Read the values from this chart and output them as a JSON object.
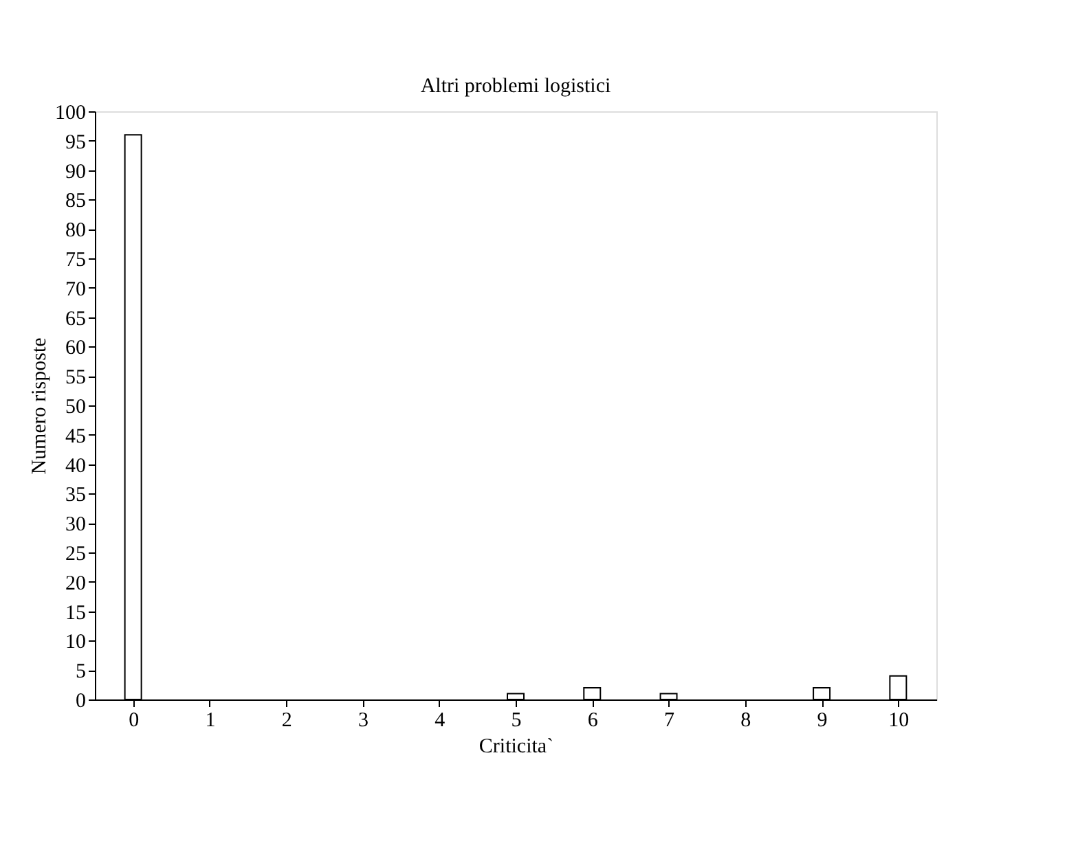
{
  "chart_data": {
    "type": "bar",
    "title": "Altri problemi logistici",
    "xlabel": "Criticita`",
    "ylabel": "Numero risposte",
    "x": [
      0,
      5,
      6,
      7,
      9,
      10
    ],
    "values": [
      96,
      1,
      2,
      1,
      2,
      4
    ],
    "color": "#ffffff",
    "xlim": [
      -0.5,
      10.5
    ],
    "xticks": [
      0,
      1,
      2,
      3,
      4,
      5,
      6,
      7,
      8,
      9,
      10
    ],
    "ylim": [
      0,
      100
    ],
    "yticks": [
      0,
      5,
      10,
      15,
      20,
      25,
      30,
      35,
      40,
      45,
      50,
      55,
      60,
      65,
      70,
      75,
      80,
      85,
      90,
      95,
      100
    ],
    "grid": false
  }
}
